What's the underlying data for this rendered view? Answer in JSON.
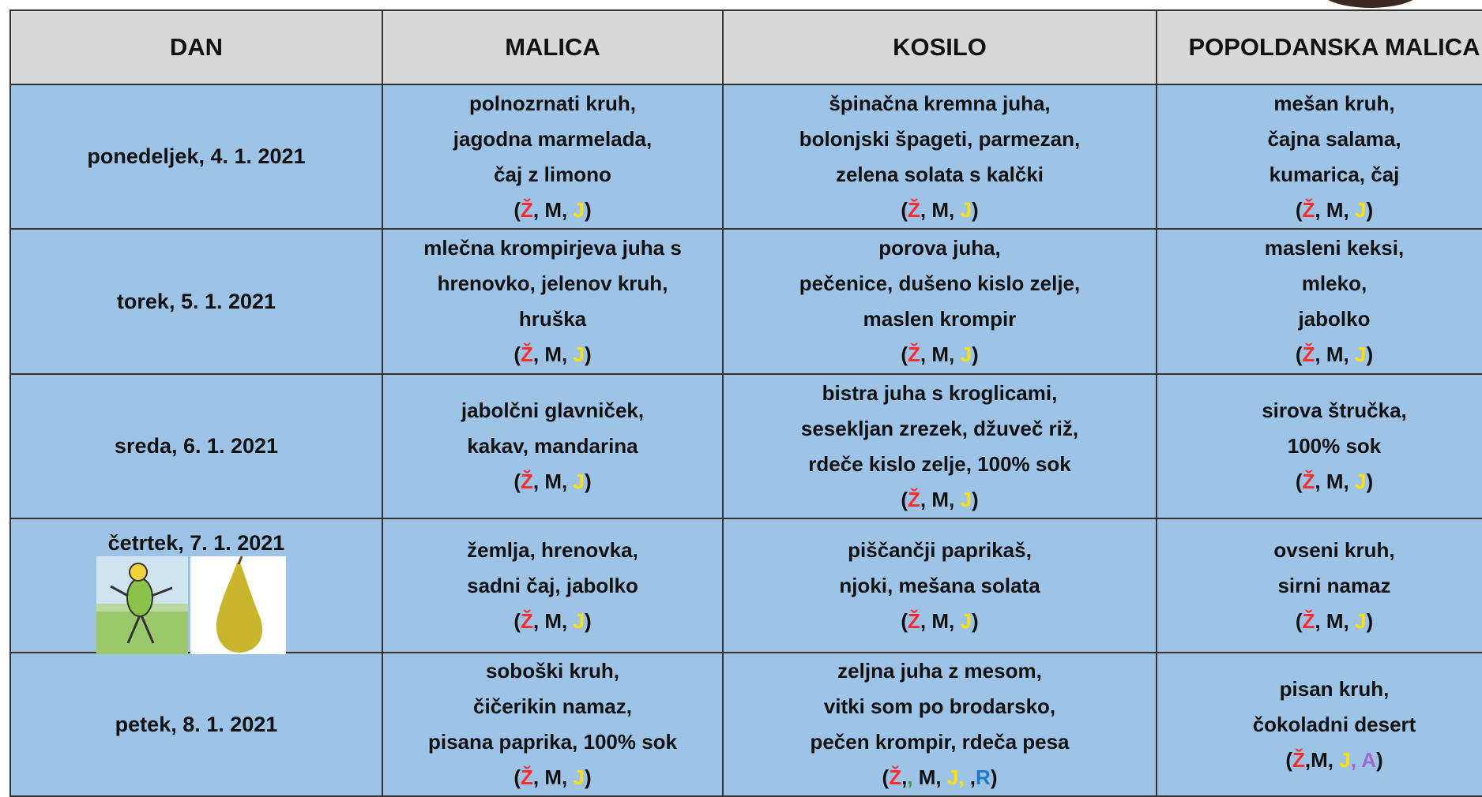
{
  "header": {
    "columns": [
      "DAN",
      "MALICA",
      "KOSILO",
      "POPOLDANSKA MALICA"
    ]
  },
  "rows": [
    {
      "day": "ponedeljek, 4. 1. 2021",
      "cells": [
        {
          "lines": [
            "polnozrnati kruh,",
            "jagodna marmelada,",
            "čaj z limono"
          ],
          "allergens": [
            {
              "text": "("
            },
            {
              "text": "Ž",
              "color": "#ff2a2a"
            },
            {
              "text": ", M, "
            },
            {
              "text": "J",
              "color": "#ffe100"
            },
            {
              "text": ")"
            }
          ]
        },
        {
          "lines": [
            "špinačna kremna juha,",
            "bolonjski špageti, parmezan,",
            "zelena solata s kalčki"
          ],
          "allergens": [
            {
              "text": "("
            },
            {
              "text": "Ž",
              "color": "#ff2a2a"
            },
            {
              "text": ", M, "
            },
            {
              "text": "J",
              "color": "#ffe100"
            },
            {
              "text": ")"
            }
          ]
        },
        {
          "lines": [
            "mešan kruh,",
            "čajna salama,",
            "kumarica, čaj"
          ],
          "allergens": [
            {
              "text": "("
            },
            {
              "text": "Ž",
              "color": "#ff2a2a"
            },
            {
              "text": ", M, "
            },
            {
              "text": "J",
              "color": "#ffe100"
            },
            {
              "text": ")"
            }
          ]
        }
      ]
    },
    {
      "day": "torek, 5. 1. 2021",
      "cells": [
        {
          "lines": [
            "mlečna krompirjeva juha s",
            "hrenovko, jelenov kruh,",
            "hruška"
          ],
          "allergens": [
            {
              "text": "("
            },
            {
              "text": "Ž",
              "color": "#ff2a2a"
            },
            {
              "text": ", M, "
            },
            {
              "text": "J",
              "color": "#ffe100"
            },
            {
              "text": ")"
            }
          ]
        },
        {
          "lines": [
            "porova juha,",
            "pečenice, dušeno kislo zelje,",
            "maslen krompir"
          ],
          "allergens": [
            {
              "text": "("
            },
            {
              "text": "Ž",
              "color": "#ff2a2a"
            },
            {
              "text": ", M, "
            },
            {
              "text": "J",
              "color": "#ffe100"
            },
            {
              "text": ")"
            }
          ]
        },
        {
          "lines": [
            "masleni keksi,",
            "mleko,",
            "jabolko"
          ],
          "allergens": [
            {
              "text": "("
            },
            {
              "text": "Ž",
              "color": "#ff2a2a"
            },
            {
              "text": ", M, "
            },
            {
              "text": "J",
              "color": "#ffe100"
            },
            {
              "text": ")"
            }
          ]
        }
      ]
    },
    {
      "day": "sreda, 6. 1. 2021",
      "cells": [
        {
          "lines": [
            "jabolčni glavniček,",
            "kakav, mandarina"
          ],
          "allergens": [
            {
              "text": "("
            },
            {
              "text": "Ž",
              "color": "#ff2a2a"
            },
            {
              "text": ", M, "
            },
            {
              "text": "J",
              "color": "#ffe100"
            },
            {
              "text": ")"
            }
          ]
        },
        {
          "lines": [
            "bistra juha s kroglicami,",
            "sesekljan zrezek, džuveč riž,",
            "rdeče kislo zelje, 100% sok"
          ],
          "allergens": [
            {
              "text": "("
            },
            {
              "text": "Ž",
              "color": "#ff2a2a"
            },
            {
              "text": ", M, "
            },
            {
              "text": "J",
              "color": "#ffe100"
            },
            {
              "text": ")"
            }
          ]
        },
        {
          "lines": [
            "sirova štručka,",
            "100% sok"
          ],
          "allergens": [
            {
              "text": "("
            },
            {
              "text": "Ž",
              "color": "#ff2a2a"
            },
            {
              "text": ", M, "
            },
            {
              "text": "J",
              "color": "#ffe100"
            },
            {
              "text": ")"
            }
          ]
        }
      ]
    },
    {
      "day": "četrtek, 7. 1. 2021",
      "cells": [
        {
          "lines": [
            "žemlja, hrenovka,",
            "sadni čaj, jabolko"
          ],
          "allergens": [
            {
              "text": "("
            },
            {
              "text": "Ž",
              "color": "#ff2a2a"
            },
            {
              "text": ", M, "
            },
            {
              "text": "J",
              "color": "#ffe100"
            },
            {
              "text": ")"
            }
          ]
        },
        {
          "lines": [
            "piščančji paprikaš,",
            "njoki, mešana solata"
          ],
          "allergens": [
            {
              "text": "("
            },
            {
              "text": "Ž",
              "color": "#ff2a2a"
            },
            {
              "text": ", M, "
            },
            {
              "text": "J",
              "color": "#ffe100"
            },
            {
              "text": ")"
            }
          ]
        },
        {
          "lines": [
            "ovseni kruh,",
            "sirni namaz"
          ],
          "allergens": [
            {
              "text": "("
            },
            {
              "text": "Ž",
              "color": "#ff2a2a"
            },
            {
              "text": ", M, "
            },
            {
              "text": "J",
              "color": "#ffe100"
            },
            {
              "text": ")"
            }
          ]
        }
      ]
    },
    {
      "day": "petek, 8. 1. 2021",
      "cells": [
        {
          "lines": [
            "soboški kruh,",
            "čičerikin namaz,",
            "pisana paprika, 100% sok"
          ],
          "allergens": [
            {
              "text": "("
            },
            {
              "text": "Ž",
              "color": "#ff2a2a"
            },
            {
              "text": ", M, "
            },
            {
              "text": "J",
              "color": "#ffe100"
            },
            {
              "text": ")"
            }
          ]
        },
        {
          "lines": [
            "zeljna juha z mesom,",
            "vitki som po brodarsko,",
            "pečen krompir, rdeča pesa"
          ],
          "allergens": [
            {
              "text": "("
            },
            {
              "text": "Ž",
              "color": "#ff2a2a"
            },
            {
              "text": ","
            },
            {
              "text": ",",
              "color": "#3a9a3a"
            },
            {
              "text": " M, "
            },
            {
              "text": "J,",
              "color": "#ffe100"
            },
            {
              "text": " ,"
            },
            {
              "text": "R",
              "color": "#1f78c8"
            },
            {
              "text": ")"
            }
          ]
        },
        {
          "lines": [
            "pisan kruh,",
            "čokoladni desert"
          ],
          "allergens": [
            {
              "text": "("
            },
            {
              "text": "Ž",
              "color": "#ff2a2a"
            },
            {
              "text": ",M, "
            },
            {
              "text": "J",
              "color": "#ffe100"
            },
            {
              "text": ", A",
              "color": "#9c6bd0"
            },
            {
              "text": ")"
            }
          ]
        }
      ]
    }
  ]
}
